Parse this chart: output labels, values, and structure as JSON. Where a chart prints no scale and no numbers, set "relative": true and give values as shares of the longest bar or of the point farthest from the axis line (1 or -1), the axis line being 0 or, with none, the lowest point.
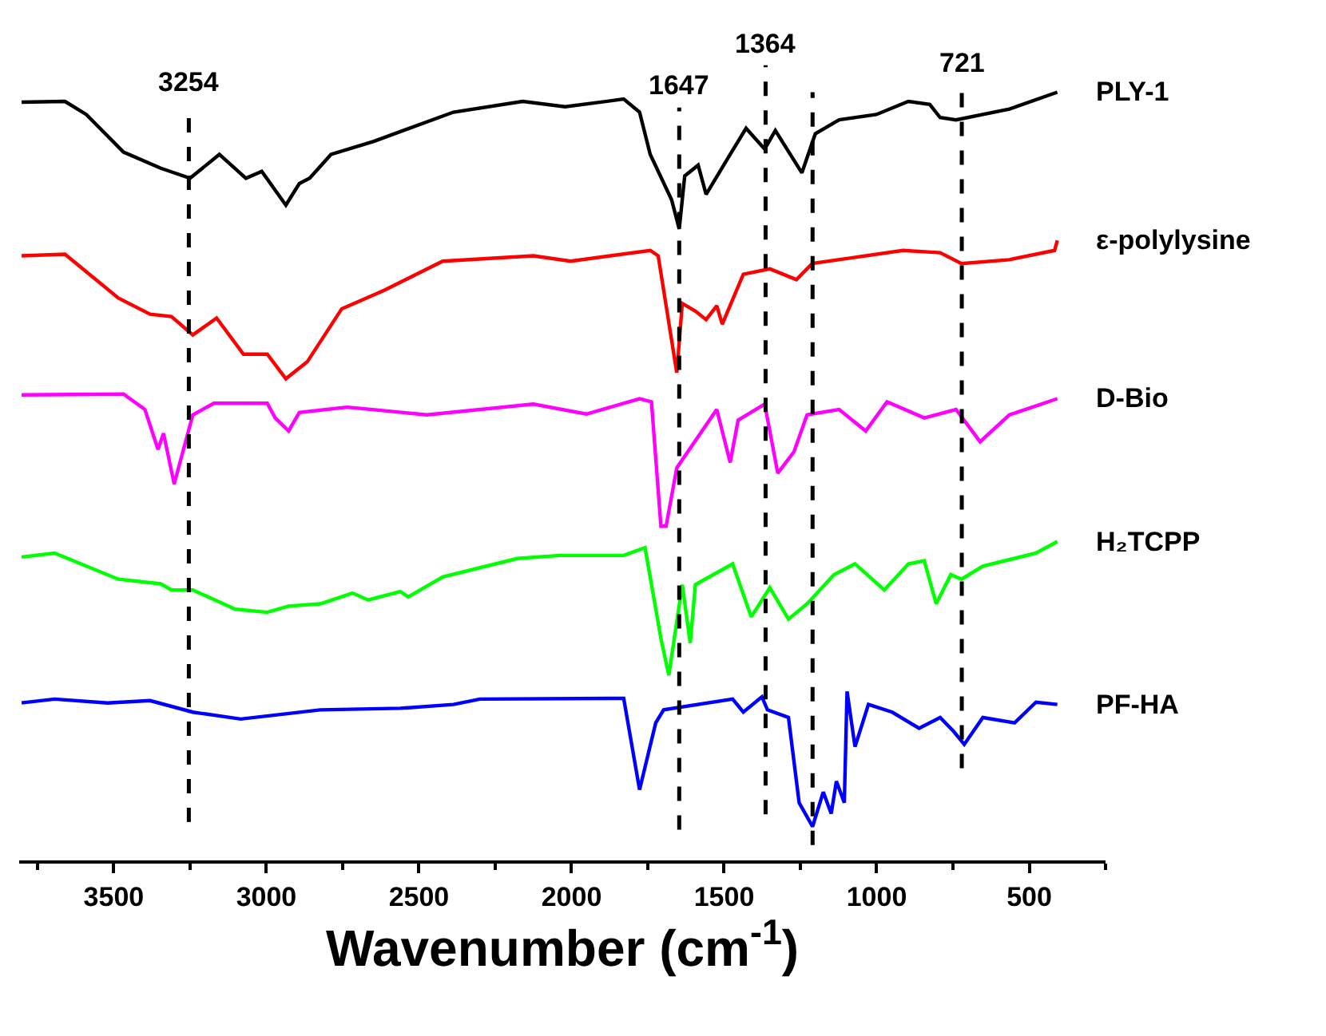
{
  "chart_data": {
    "type": "line",
    "relative": true,
    "xlabel": "Wavenumber (cm$^{-1}$)",
    "xlim": [
      3810,
      250
    ],
    "xticks": [
      3500,
      3000,
      2500,
      2000,
      1500,
      1000,
      500
    ],
    "legend": false,
    "line_style": "solid",
    "marker": "none",
    "series": [
      {
        "name": "PLY-1",
        "color": "#000000",
        "x": [
          3802,
          3660,
          3590,
          3468,
          3346,
          3250,
          3154,
          3067,
          3015,
          2936,
          2892,
          2858,
          2788,
          2648,
          2387,
          2160,
          2021,
          1829,
          1777,
          1742,
          1672,
          1647,
          1629,
          1585,
          1559,
          1480,
          1428,
          1367,
          1332,
          1245,
          1201,
          1123,
          1001,
          896,
          826,
          792,
          740,
          565,
          408
        ],
        "values": [
          0.987,
          0.988,
          0.971,
          0.922,
          0.901,
          0.888,
          0.919,
          0.888,
          0.897,
          0.853,
          0.881,
          0.888,
          0.919,
          0.936,
          0.974,
          0.988,
          0.981,
          0.991,
          0.974,
          0.919,
          0.86,
          0.822,
          0.891,
          0.905,
          0.867,
          0.919,
          0.953,
          0.926,
          0.95,
          0.895,
          0.946,
          0.964,
          0.971,
          0.988,
          0.984,
          0.967,
          0.964,
          0.978,
          1.0
        ]
      },
      {
        "name": "ε-polylysine",
        "color": "#ff0000",
        "x": [
          3802,
          3660,
          3485,
          3381,
          3311,
          3241,
          3163,
          3075,
          2997,
          2936,
          2866,
          2753,
          2614,
          2422,
          2125,
          2003,
          1742,
          1716,
          1655,
          1637,
          1594,
          1559,
          1524,
          1506,
          1437,
          1350,
          1263,
          1211,
          1088,
          914,
          792,
          722,
          565,
          417,
          408
        ],
        "values": [
          0.787,
          0.789,
          0.732,
          0.711,
          0.708,
          0.684,
          0.706,
          0.659,
          0.659,
          0.627,
          0.649,
          0.718,
          0.742,
          0.78,
          0.787,
          0.78,
          0.794,
          0.787,
          0.635,
          0.725,
          0.715,
          0.704,
          0.722,
          0.698,
          0.763,
          0.77,
          0.756,
          0.777,
          0.784,
          0.794,
          0.791,
          0.777,
          0.782,
          0.794,
          0.807
        ]
      },
      {
        "name": "D-Bio",
        "color": "#ff00ff",
        "x": [
          3802,
          3468,
          3398,
          3355,
          3337,
          3302,
          3241,
          3172,
          2997,
          2971,
          2927,
          2892,
          2735,
          2474,
          2125,
          1951,
          1777,
          1738,
          1707,
          1690,
          1655,
          1524,
          1480,
          1454,
          1367,
          1324,
          1271,
          1228,
          1123,
          1036,
          966,
          844,
          740,
          661,
          565,
          408
        ],
        "values": [
          0.606,
          0.607,
          0.587,
          0.535,
          0.556,
          0.49,
          0.58,
          0.595,
          0.595,
          0.576,
          0.559,
          0.583,
          0.59,
          0.58,
          0.594,
          0.581,
          0.601,
          0.597,
          0.435,
          0.435,
          0.511,
          0.587,
          0.518,
          0.573,
          0.594,
          0.504,
          0.532,
          0.58,
          0.587,
          0.559,
          0.597,
          0.576,
          0.587,
          0.545,
          0.58,
          0.601
        ]
      },
      {
        "name": "H₂TCPP",
        "color": "#00ff00",
        "x": [
          3802,
          3694,
          3485,
          3346,
          3311,
          3241,
          3102,
          2997,
          2927,
          2823,
          2718,
          2666,
          2561,
          2535,
          2422,
          2178,
          2038,
          1829,
          1759,
          1707,
          1681,
          1637,
          1611,
          1594,
          1472,
          1411,
          1350,
          1289,
          1228,
          1140,
          1071,
          975,
          896,
          844,
          805,
          757,
          722,
          652,
          478,
          408
        ],
        "values": [
          0.395,
          0.4,
          0.366,
          0.36,
          0.352,
          0.352,
          0.327,
          0.323,
          0.331,
          0.334,
          0.348,
          0.339,
          0.35,
          0.343,
          0.369,
          0.393,
          0.397,
          0.397,
          0.407,
          0.289,
          0.241,
          0.359,
          0.283,
          0.359,
          0.386,
          0.317,
          0.355,
          0.314,
          0.334,
          0.372,
          0.386,
          0.352,
          0.386,
          0.39,
          0.334,
          0.372,
          0.366,
          0.383,
          0.4,
          0.415
        ]
      },
      {
        "name": "PF-HA",
        "color": "#0000ff",
        "x": [
          3802,
          3694,
          3520,
          3381,
          3241,
          3084,
          2823,
          2561,
          2387,
          2300,
          1829,
          1777,
          1724,
          1698,
          1472,
          1437,
          1376,
          1358,
          1289,
          1254,
          1210,
          1175,
          1149,
          1132,
          1106,
          1097,
          1071,
          1027,
          949,
          861,
          792,
          748,
          713,
          652,
          548,
          478,
          408
        ],
        "values": [
          0.205,
          0.21,
          0.205,
          0.208,
          0.193,
          0.184,
          0.196,
          0.198,
          0.203,
          0.21,
          0.211,
          0.092,
          0.179,
          0.196,
          0.21,
          0.193,
          0.213,
          0.196,
          0.186,
          0.075,
          0.044,
          0.089,
          0.061,
          0.103,
          0.075,
          0.22,
          0.148,
          0.203,
          0.193,
          0.172,
          0.186,
          0.168,
          0.151,
          0.186,
          0.179,
          0.206,
          0.203
        ]
      }
    ],
    "ref_lines": [
      {
        "axis": "x",
        "value": 3254,
        "label": "3254",
        "color": "#000000",
        "line_style": "dashed"
      },
      {
        "axis": "x",
        "value": 1647,
        "label": "1647",
        "color": "#000000",
        "line_style": "dashed"
      },
      {
        "axis": "x",
        "value": 1364,
        "label": "1364",
        "color": "#000000",
        "line_style": "dashed"
      },
      {
        "axis": "x",
        "value": 1210,
        "label": null,
        "color": "#000000",
        "line_style": "dashed"
      },
      {
        "axis": "x",
        "value": 721,
        "label": "721",
        "color": "#000000",
        "line_style": "dashed"
      }
    ]
  }
}
